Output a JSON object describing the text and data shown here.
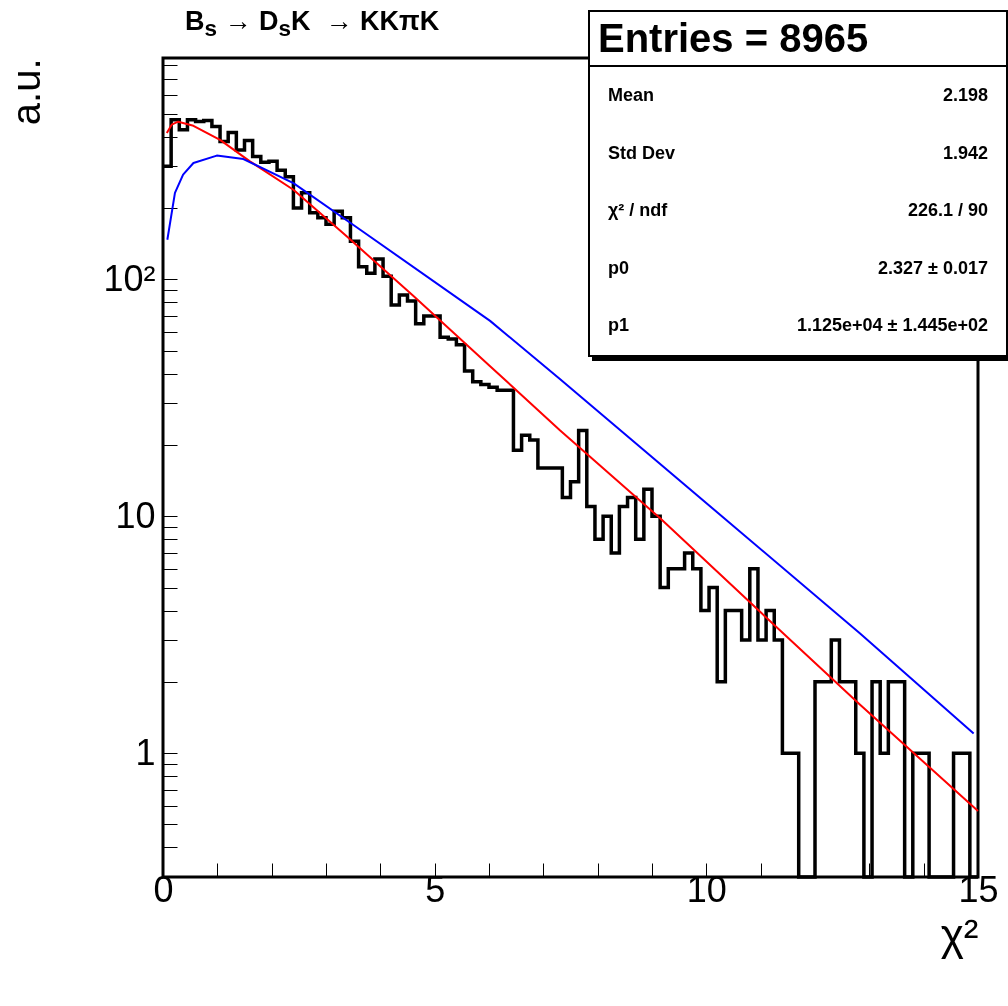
{
  "chart_data": {
    "type": "histogram",
    "title": "B$_{s}$ → D$_{s}$K  → KKπK",
    "xlabel": "χ²",
    "ylabel": "a.u.",
    "bins": [
      0,
      0.15,
      0.3,
      0.45,
      0.6,
      0.75,
      0.9,
      1.05,
      1.2,
      1.35,
      1.5,
      1.65,
      1.8,
      1.95,
      2.1,
      2.25,
      2.4,
      2.55,
      2.7,
      2.85,
      3,
      3.15,
      3.3,
      3.45,
      3.6,
      3.75,
      3.9,
      4.05,
      4.2,
      4.35,
      4.5,
      4.65,
      4.8,
      4.95,
      5.1,
      5.25,
      5.4,
      5.55,
      5.7,
      5.85,
      6,
      6.15,
      6.3,
      6.45,
      6.6,
      6.75,
      6.9,
      7.05,
      7.2,
      7.35,
      7.5,
      7.65,
      7.8,
      7.95,
      8.1,
      8.25,
      8.4,
      8.55,
      8.7,
      8.85,
      9,
      9.15,
      9.3,
      9.45,
      9.6,
      9.75,
      9.9,
      10.05,
      10.2,
      10.35,
      10.5,
      10.65,
      10.8,
      10.95,
      11.1,
      11.25,
      11.4,
      11.55,
      11.7,
      11.85,
      12,
      12.15,
      12.3,
      12.45,
      12.6,
      12.75,
      12.9,
      13.05,
      13.2,
      13.35,
      13.5,
      13.65,
      13.8,
      13.95,
      14.1,
      14.25,
      14.4,
      14.55,
      14.7,
      14.85,
      15
    ],
    "series": [
      {
        "color": "#000000",
        "values": [
          300,
          472,
          428,
          472,
          464,
          469,
          442,
          382,
          417,
          352,
          386,
          330,
          312,
          315,
          289,
          271,
          200,
          232,
          191,
          182,
          171,
          194,
          182,
          145,
          113,
          106,
          122,
          103,
          78,
          86,
          81,
          65,
          70,
          70,
          57,
          56,
          53,
          41,
          37,
          36,
          35,
          34,
          34,
          19,
          22,
          21,
          16,
          16,
          16,
          12,
          14,
          23,
          11,
          8,
          10,
          7,
          11,
          12,
          8,
          13,
          10,
          5,
          6,
          6,
          7,
          6,
          4,
          5,
          2,
          4,
          4,
          3,
          6,
          3,
          4,
          3,
          1,
          1,
          null,
          null,
          2,
          2,
          3,
          2,
          2,
          1,
          null,
          2,
          1,
          2,
          2,
          null,
          1,
          1,
          null,
          null,
          null,
          1,
          1,
          null
        ]
      },
      {
        "type": "line",
        "color": "#ff0000",
        "x": [
          0.07,
          0.16,
          0.28,
          0.56,
          1.05,
          1.6,
          2.4,
          3.38,
          4.61,
          6.02,
          7.31,
          9.15,
          10.99,
          12.83,
          15
        ],
        "values": [
          415,
          450,
          463,
          445,
          388,
          315,
          239,
          152,
          85,
          43,
          23,
          9.8,
          3.95,
          1.6,
          0.57
        ]
      },
      {
        "type": "line",
        "color": "#0000ff",
        "x": [
          0.08,
          0.22,
          0.37,
          0.56,
          0.99,
          1.48,
          2.4,
          3.63,
          6.02,
          7.31,
          12.83,
          14.92
        ],
        "values": [
          147,
          232,
          277,
          310,
          333,
          322,
          255,
          162,
          66.8,
          37.9,
          3.2,
          1.21
        ]
      }
    ],
    "xlim": [
      0,
      15
    ],
    "xticks": [
      0,
      {
        "value": 1,
        "label": null
      },
      {
        "value": 2,
        "label": null
      },
      {
        "value": 3,
        "label": null
      },
      {
        "value": 4,
        "label": null
      },
      5,
      {
        "value": 6,
        "label": null
      },
      {
        "value": 7,
        "label": null
      },
      {
        "value": 8,
        "label": null
      },
      {
        "value": 9,
        "label": null
      },
      10,
      {
        "value": 11,
        "label": null
      },
      {
        "value": 12,
        "label": null
      },
      {
        "value": 13,
        "label": null
      },
      {
        "value": 14,
        "label": null
      },
      15
    ],
    "ylim": [
      0.3,
      860
    ],
    "yticks": [
      {
        "value": 0.4,
        "label": null
      },
      {
        "value": 0.5,
        "label": null
      },
      {
        "value": 0.6,
        "label": null
      },
      {
        "value": 0.7,
        "label": null
      },
      {
        "value": 0.8,
        "label": null
      },
      {
        "value": 0.9,
        "label": null
      },
      1,
      {
        "value": 2,
        "label": null
      },
      {
        "value": 3,
        "label": null
      },
      {
        "value": 4,
        "label": null
      },
      {
        "value": 5,
        "label": null
      },
      {
        "value": 6,
        "label": null
      },
      {
        "value": 7,
        "label": null
      },
      {
        "value": 8,
        "label": null
      },
      {
        "value": 9,
        "label": null
      },
      10,
      {
        "value": 20,
        "label": null
      },
      {
        "value": 30,
        "label": null
      },
      {
        "value": 40,
        "label": null
      },
      {
        "value": 50,
        "label": null
      },
      {
        "value": 60,
        "label": null
      },
      {
        "value": 70,
        "label": null
      },
      {
        "value": 80,
        "label": null
      },
      {
        "value": 90,
        "label": null
      },
      {
        "value": 100,
        "label": "10²"
      },
      {
        "value": 200,
        "label": null
      },
      {
        "value": 300,
        "label": null
      },
      {
        "value": 400,
        "label": null
      },
      {
        "value": 500,
        "label": null
      },
      {
        "value": 600,
        "label": null
      },
      {
        "value": 700,
        "label": null
      },
      {
        "value": 800,
        "label": null
      }
    ],
    "log": "y",
    "annotations": [
      "Entries = 8965",
      "Mean",
      "2.198",
      "Std Dev",
      "1.942",
      "χ² / ndf",
      "226.1 / 90",
      "p0",
      "2.327 ± 0.017",
      "p1",
      "1.125e+04 ± 1.445e+02"
    ]
  }
}
